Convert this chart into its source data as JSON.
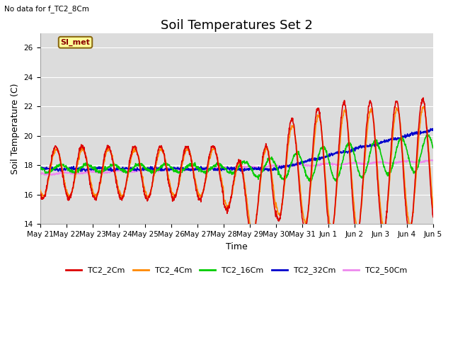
{
  "title": "Soil Temperatures Set 2",
  "subtitle": "No data for f_TC2_8Cm",
  "xlabel": "Time",
  "ylabel": "Soil Temperature (C)",
  "ylim": [
    14,
    27
  ],
  "yticks": [
    14,
    16,
    18,
    20,
    22,
    24,
    26
  ],
  "background_color": "#dcdcdc",
  "fig_background": "#ffffff",
  "legend_box_label": "SI_met",
  "legend_box_color": "#ffff99",
  "legend_box_border": "#8b6914",
  "series": {
    "TC2_2Cm": {
      "color": "#dd0000",
      "lw": 1.2
    },
    "TC2_4Cm": {
      "color": "#ff8800",
      "lw": 1.2
    },
    "TC2_16Cm": {
      "color": "#00cc00",
      "lw": 1.2
    },
    "TC2_32Cm": {
      "color": "#0000cc",
      "lw": 1.2
    },
    "TC2_50Cm": {
      "color": "#ee88ee",
      "lw": 1.2
    }
  },
  "x_tick_labels": [
    "May 21",
    "May 22",
    "May 23",
    "May 24",
    "May 25",
    "May 26",
    "May 27",
    "May 28",
    "May 29",
    "May 30",
    "May 31",
    "Jun 1",
    "Jun 2",
    "Jun 3",
    "Jun 4",
    "Jun 5"
  ],
  "title_fontsize": 13,
  "axis_fontsize": 9,
  "tick_fontsize": 7.5
}
